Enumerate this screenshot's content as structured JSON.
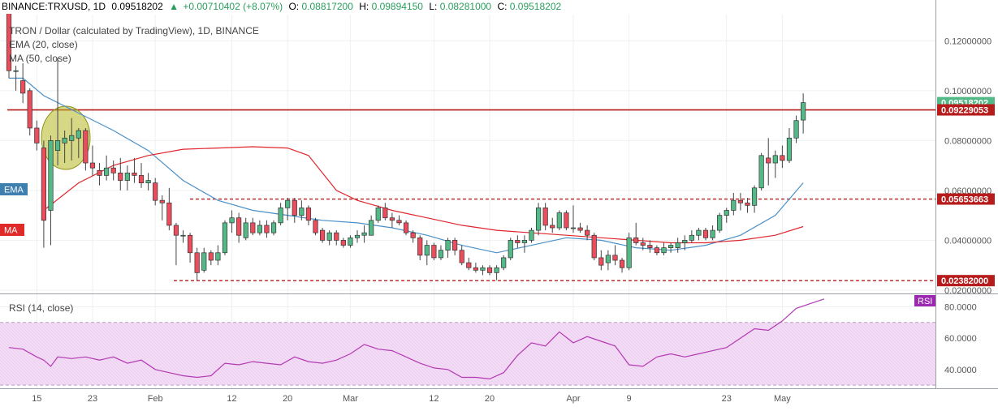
{
  "header": {
    "symbol": "BINANCE:TRXUSD, 1D",
    "last": "0.09518202",
    "change": "+0.00710402 (+8.07%)",
    "o_label": "O:",
    "o": "0.08817200",
    "h_label": "H:",
    "h": "0.09894150",
    "l_label": "L:",
    "l": "0.08281000",
    "c_label": "C:",
    "c": "0.09518202"
  },
  "legend": {
    "title": "TRON / Dollar (calculated by TradingView), 1D, BINANCE",
    "ema": "EMA (20, close)",
    "ma": "MA (50, close)",
    "ema_tag": "EMA",
    "ma_tag": "MA"
  },
  "rsi_panel": {
    "title": "RSI (14, close)",
    "tag": "RSI"
  },
  "colors": {
    "up": "#53b987",
    "down": "#eb4d5c",
    "ema": "#4a90c8",
    "ma": "#e0252c",
    "rsi": "#b33ab3",
    "level": "#b71c1c",
    "rsi_band": "#f4def6",
    "ellipse": "#a8b02a"
  },
  "chart_data": [
    {
      "type": "candlestick",
      "title": "TRON / Dollar (calculated by TradingView), 1D, BINANCE",
      "ylim": [
        0.019,
        0.1305
      ],
      "y_ticks": [
        0.12,
        0.1,
        0.08,
        0.06,
        0.04,
        0.02
      ],
      "y_tick_labels": [
        "0.12000000",
        "0.10000000",
        "0.08000000",
        "0.06000000",
        "0.04000000",
        "0.02000000"
      ],
      "x_tick_labels": [
        "15",
        "23",
        "Feb",
        "12",
        "20",
        "Mar",
        "12",
        "20",
        "Apr",
        "9",
        "23",
        "May"
      ],
      "x_tick_days": [
        4,
        12,
        21,
        32,
        40,
        49,
        61,
        69,
        81,
        89,
        103,
        111
      ],
      "levels": [
        {
          "value": 0.09229053,
          "label": "0.09229053",
          "style": "solid"
        },
        {
          "value": 0.05653663,
          "label": "0.05653663",
          "style": "dashed"
        },
        {
          "value": 0.02382,
          "label": "0.02382000",
          "style": "dashed"
        }
      ],
      "last_price": {
        "value": 0.09518202,
        "label": "0.09518202"
      },
      "candles": [
        [
          0.132,
          0.136,
          0.105,
          0.108
        ],
        [
          0.108,
          0.11,
          0.1,
          0.108
        ],
        [
          0.104,
          0.111,
          0.095,
          0.099
        ],
        [
          0.1,
          0.101,
          0.082,
          0.085
        ],
        [
          0.085,
          0.088,
          0.076,
          0.079
        ],
        [
          0.077,
          0.08,
          0.037,
          0.048
        ],
        [
          0.052,
          0.082,
          0.038,
          0.08
        ],
        [
          0.076,
          0.113,
          0.07,
          0.08
        ],
        [
          0.079,
          0.084,
          0.071,
          0.081
        ],
        [
          0.08,
          0.089,
          0.072,
          0.082
        ],
        [
          0.081,
          0.085,
          0.073,
          0.084
        ],
        [
          0.084,
          0.085,
          0.068,
          0.071
        ],
        [
          0.071,
          0.078,
          0.066,
          0.069
        ],
        [
          0.068,
          0.071,
          0.062,
          0.066
        ],
        [
          0.066,
          0.074,
          0.064,
          0.069
        ],
        [
          0.069,
          0.072,
          0.064,
          0.067
        ],
        [
          0.067,
          0.073,
          0.06,
          0.064
        ],
        [
          0.064,
          0.07,
          0.06,
          0.067
        ],
        [
          0.067,
          0.073,
          0.063,
          0.066
        ],
        [
          0.066,
          0.071,
          0.061,
          0.063
        ],
        [
          0.063,
          0.067,
          0.06,
          0.064
        ],
        [
          0.063,
          0.065,
          0.054,
          0.056
        ],
        [
          0.056,
          0.058,
          0.048,
          0.055
        ],
        [
          0.055,
          0.061,
          0.044,
          0.046
        ],
        [
          0.046,
          0.047,
          0.03,
          0.042
        ],
        [
          0.042,
          0.044,
          0.039,
          0.042
        ],
        [
          0.042,
          0.043,
          0.031,
          0.035
        ],
        [
          0.035,
          0.037,
          0.024,
          0.027
        ],
        [
          0.028,
          0.037,
          0.027,
          0.035
        ],
        [
          0.035,
          0.036,
          0.03,
          0.032
        ],
        [
          0.032,
          0.038,
          0.03,
          0.035
        ],
        [
          0.035,
          0.048,
          0.034,
          0.047
        ],
        [
          0.047,
          0.052,
          0.043,
          0.049
        ],
        [
          0.049,
          0.051,
          0.039,
          0.042
        ],
        [
          0.041,
          0.049,
          0.04,
          0.047
        ],
        [
          0.047,
          0.049,
          0.042,
          0.043
        ],
        [
          0.043,
          0.048,
          0.042,
          0.046
        ],
        [
          0.046,
          0.048,
          0.041,
          0.043
        ],
        [
          0.043,
          0.048,
          0.042,
          0.047
        ],
        [
          0.047,
          0.055,
          0.046,
          0.053
        ],
        [
          0.053,
          0.057,
          0.048,
          0.056
        ],
        [
          0.056,
          0.057,
          0.047,
          0.05
        ],
        [
          0.05,
          0.056,
          0.048,
          0.053
        ],
        [
          0.053,
          0.054,
          0.046,
          0.048
        ],
        [
          0.048,
          0.049,
          0.042,
          0.043
        ],
        [
          0.044,
          0.045,
          0.039,
          0.04
        ],
        [
          0.04,
          0.044,
          0.038,
          0.043
        ],
        [
          0.043,
          0.044,
          0.038,
          0.04
        ],
        [
          0.04,
          0.041,
          0.037,
          0.038
        ],
        [
          0.038,
          0.042,
          0.037,
          0.041
        ],
        [
          0.041,
          0.044,
          0.039,
          0.042
        ],
        [
          0.042,
          0.046,
          0.039,
          0.043
        ],
        [
          0.042,
          0.05,
          0.042,
          0.048
        ],
        [
          0.048,
          0.054,
          0.047,
          0.053
        ],
        [
          0.053,
          0.055,
          0.048,
          0.049
        ],
        [
          0.049,
          0.051,
          0.045,
          0.048
        ],
        [
          0.048,
          0.05,
          0.046,
          0.047
        ],
        [
          0.047,
          0.048,
          0.042,
          0.043
        ],
        [
          0.043,
          0.044,
          0.039,
          0.041
        ],
        [
          0.041,
          0.042,
          0.032,
          0.034
        ],
        [
          0.034,
          0.04,
          0.03,
          0.038
        ],
        [
          0.038,
          0.039,
          0.032,
          0.033
        ],
        [
          0.033,
          0.038,
          0.032,
          0.036
        ],
        [
          0.036,
          0.041,
          0.033,
          0.04
        ],
        [
          0.04,
          0.041,
          0.034,
          0.036
        ],
        [
          0.036,
          0.038,
          0.03,
          0.031
        ],
        [
          0.031,
          0.033,
          0.028,
          0.029
        ],
        [
          0.029,
          0.031,
          0.027,
          0.028
        ],
        [
          0.028,
          0.03,
          0.026,
          0.029
        ],
        [
          0.029,
          0.03,
          0.026,
          0.027
        ],
        [
          0.027,
          0.03,
          0.024,
          0.029
        ],
        [
          0.029,
          0.034,
          0.028,
          0.033
        ],
        [
          0.033,
          0.041,
          0.032,
          0.04
        ],
        [
          0.04,
          0.042,
          0.037,
          0.039
        ],
        [
          0.039,
          0.042,
          0.035,
          0.04
        ],
        [
          0.04,
          0.045,
          0.039,
          0.044
        ],
        [
          0.044,
          0.055,
          0.042,
          0.053
        ],
        [
          0.053,
          0.055,
          0.044,
          0.046
        ],
        [
          0.046,
          0.049,
          0.043,
          0.045
        ],
        [
          0.045,
          0.052,
          0.044,
          0.051
        ],
        [
          0.051,
          0.052,
          0.044,
          0.045
        ],
        [
          0.045,
          0.054,
          0.043,
          0.045
        ],
        [
          0.045,
          0.047,
          0.043,
          0.044
        ],
        [
          0.044,
          0.046,
          0.04,
          0.042
        ],
        [
          0.042,
          0.043,
          0.032,
          0.033
        ],
        [
          0.033,
          0.036,
          0.028,
          0.03
        ],
        [
          0.031,
          0.036,
          0.028,
          0.034
        ],
        [
          0.034,
          0.038,
          0.03,
          0.032
        ],
        [
          0.032,
          0.033,
          0.027,
          0.029
        ],
        [
          0.029,
          0.043,
          0.028,
          0.041
        ],
        [
          0.041,
          0.047,
          0.038,
          0.039
        ],
        [
          0.039,
          0.041,
          0.036,
          0.038
        ],
        [
          0.038,
          0.04,
          0.035,
          0.037
        ],
        [
          0.037,
          0.038,
          0.034,
          0.035
        ],
        [
          0.035,
          0.039,
          0.034,
          0.037
        ],
        [
          0.037,
          0.039,
          0.035,
          0.038
        ],
        [
          0.037,
          0.041,
          0.035,
          0.039
        ],
        [
          0.039,
          0.042,
          0.036,
          0.04
        ],
        [
          0.04,
          0.044,
          0.039,
          0.042
        ],
        [
          0.042,
          0.045,
          0.04,
          0.044
        ],
        [
          0.044,
          0.045,
          0.04,
          0.041
        ],
        [
          0.041,
          0.046,
          0.04,
          0.044
        ],
        [
          0.044,
          0.051,
          0.043,
          0.05
        ],
        [
          0.05,
          0.053,
          0.047,
          0.052
        ],
        [
          0.052,
          0.059,
          0.05,
          0.056
        ],
        [
          0.056,
          0.059,
          0.052,
          0.055
        ],
        [
          0.055,
          0.057,
          0.051,
          0.054
        ],
        [
          0.054,
          0.062,
          0.051,
          0.061
        ],
        [
          0.061,
          0.075,
          0.06,
          0.074
        ],
        [
          0.073,
          0.081,
          0.062,
          0.071
        ],
        [
          0.071,
          0.076,
          0.065,
          0.074
        ],
        [
          0.074,
          0.078,
          0.069,
          0.072
        ],
        [
          0.072,
          0.085,
          0.071,
          0.081
        ],
        [
          0.081,
          0.09,
          0.079,
          0.088
        ],
        [
          0.0882,
          0.0989,
          0.0828,
          0.0952
        ]
      ],
      "ema20": [
        [
          0,
          0.105
        ],
        [
          2,
          0.105
        ],
        [
          5,
          0.098
        ],
        [
          10,
          0.091
        ],
        [
          15,
          0.084
        ],
        [
          20,
          0.076
        ],
        [
          25,
          0.064
        ],
        [
          30,
          0.056
        ],
        [
          35,
          0.052
        ],
        [
          40,
          0.05
        ],
        [
          45,
          0.048
        ],
        [
          50,
          0.047
        ],
        [
          55,
          0.045
        ],
        [
          60,
          0.042
        ],
        [
          65,
          0.038
        ],
        [
          70,
          0.035
        ],
        [
          75,
          0.038
        ],
        [
          80,
          0.041
        ],
        [
          85,
          0.04
        ],
        [
          90,
          0.037
        ],
        [
          95,
          0.036
        ],
        [
          100,
          0.038
        ],
        [
          105,
          0.042
        ],
        [
          110,
          0.05
        ],
        [
          114,
          0.063
        ]
      ],
      "ma50": [
        [
          5,
          0.052
        ],
        [
          10,
          0.063
        ],
        [
          15,
          0.07
        ],
        [
          20,
          0.074
        ],
        [
          25,
          0.0765
        ],
        [
          30,
          0.077
        ],
        [
          35,
          0.0775
        ],
        [
          40,
          0.077
        ],
        [
          43,
          0.074
        ],
        [
          47,
          0.06
        ],
        [
          50,
          0.056
        ],
        [
          55,
          0.052
        ],
        [
          60,
          0.049
        ],
        [
          65,
          0.046
        ],
        [
          70,
          0.044
        ],
        [
          75,
          0.043
        ],
        [
          80,
          0.042
        ],
        [
          85,
          0.041
        ],
        [
          90,
          0.04
        ],
        [
          95,
          0.039
        ],
        [
          100,
          0.039
        ],
        [
          105,
          0.04
        ],
        [
          110,
          0.042
        ],
        [
          114,
          0.0455
        ]
      ]
    },
    {
      "type": "line",
      "title": "RSI (14, close)",
      "ylim": [
        28,
        88
      ],
      "y_ticks": [
        80,
        60,
        40
      ],
      "y_tick_labels": [
        "80.0000",
        "60.0000",
        "40.0000"
      ],
      "bands": [
        30,
        70
      ],
      "values": [
        [
          0,
          54
        ],
        [
          2,
          53
        ],
        [
          4,
          48
        ],
        [
          5,
          46
        ],
        [
          6,
          42
        ],
        [
          7,
          48
        ],
        [
          9,
          47
        ],
        [
          11,
          48
        ],
        [
          13,
          46
        ],
        [
          15,
          48
        ],
        [
          17,
          44
        ],
        [
          19,
          46
        ],
        [
          21,
          40
        ],
        [
          23,
          38
        ],
        [
          25,
          36
        ],
        [
          27,
          35
        ],
        [
          29,
          36
        ],
        [
          31,
          44
        ],
        [
          33,
          43
        ],
        [
          35,
          45
        ],
        [
          37,
          44
        ],
        [
          39,
          43
        ],
        [
          41,
          48
        ],
        [
          43,
          45
        ],
        [
          45,
          44
        ],
        [
          47,
          46
        ],
        [
          49,
          50
        ],
        [
          51,
          56
        ],
        [
          53,
          53
        ],
        [
          55,
          52
        ],
        [
          57,
          48
        ],
        [
          59,
          44
        ],
        [
          61,
          41
        ],
        [
          63,
          40
        ],
        [
          65,
          35
        ],
        [
          67,
          35
        ],
        [
          69,
          34
        ],
        [
          71,
          38
        ],
        [
          73,
          49
        ],
        [
          75,
          57
        ],
        [
          77,
          55
        ],
        [
          79,
          64
        ],
        [
          81,
          57
        ],
        [
          83,
          61
        ],
        [
          85,
          58
        ],
        [
          87,
          55
        ],
        [
          89,
          43
        ],
        [
          91,
          42
        ],
        [
          93,
          48
        ],
        [
          95,
          50
        ],
        [
          97,
          48
        ],
        [
          99,
          50
        ],
        [
          101,
          52
        ],
        [
          103,
          54
        ],
        [
          105,
          60
        ],
        [
          107,
          66
        ],
        [
          109,
          65
        ],
        [
          111,
          71
        ],
        [
          113,
          79
        ],
        [
          115,
          82
        ],
        [
          117,
          85
        ]
      ]
    }
  ]
}
